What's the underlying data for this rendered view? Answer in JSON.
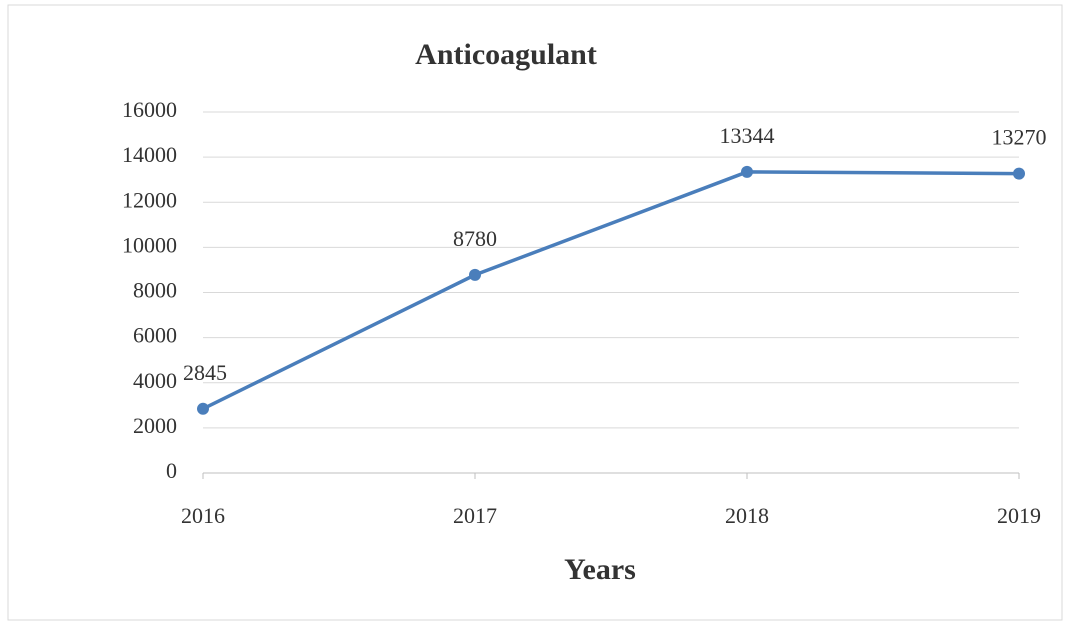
{
  "chart_data": {
    "type": "line",
    "title": "Anticoagulant",
    "x_label": "Years",
    "categories": [
      "2016",
      "2017",
      "2018",
      "2019"
    ],
    "series": [
      {
        "name": "Anticoagulant",
        "color": "#4a7ebb",
        "values": [
          2845,
          8780,
          13344,
          13270
        ]
      }
    ],
    "ylim": [
      0,
      16000
    ],
    "yticks": [
      0,
      2000,
      4000,
      6000,
      8000,
      10000,
      12000,
      14000,
      16000
    ],
    "grid": true
  }
}
